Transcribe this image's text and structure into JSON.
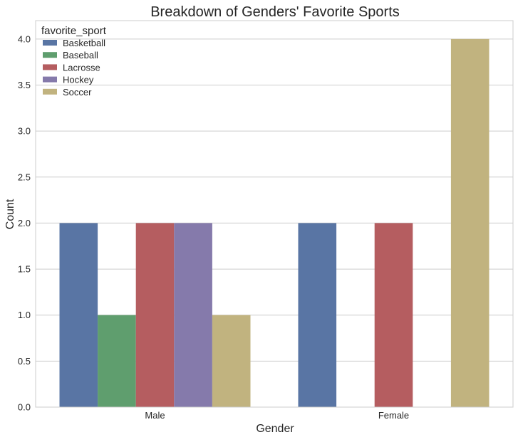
{
  "chart_data": {
    "type": "bar",
    "title": "Breakdown of Genders' Favorite Sports",
    "xlabel": "Gender",
    "ylabel": "Count",
    "categories": [
      "Male",
      "Female"
    ],
    "ylim": [
      0,
      4.2
    ],
    "yticks": [
      "0.0",
      "0.5",
      "1.0",
      "1.5",
      "2.0",
      "2.5",
      "3.0",
      "3.5",
      "4.0"
    ],
    "grid": true,
    "legend": {
      "title": "favorite_sport",
      "position": "top-left"
    },
    "series": [
      {
        "name": "Basketball",
        "color": "#5975a4",
        "values": [
          2,
          2
        ]
      },
      {
        "name": "Baseball",
        "color": "#5f9e6e",
        "values": [
          1,
          0
        ]
      },
      {
        "name": "Lacrosse",
        "color": "#b55d60",
        "values": [
          2,
          2
        ]
      },
      {
        "name": "Hockey",
        "color": "#857aab",
        "values": [
          2,
          0
        ]
      },
      {
        "name": "Soccer",
        "color": "#c1b37f",
        "values": [
          1,
          4
        ]
      }
    ]
  }
}
